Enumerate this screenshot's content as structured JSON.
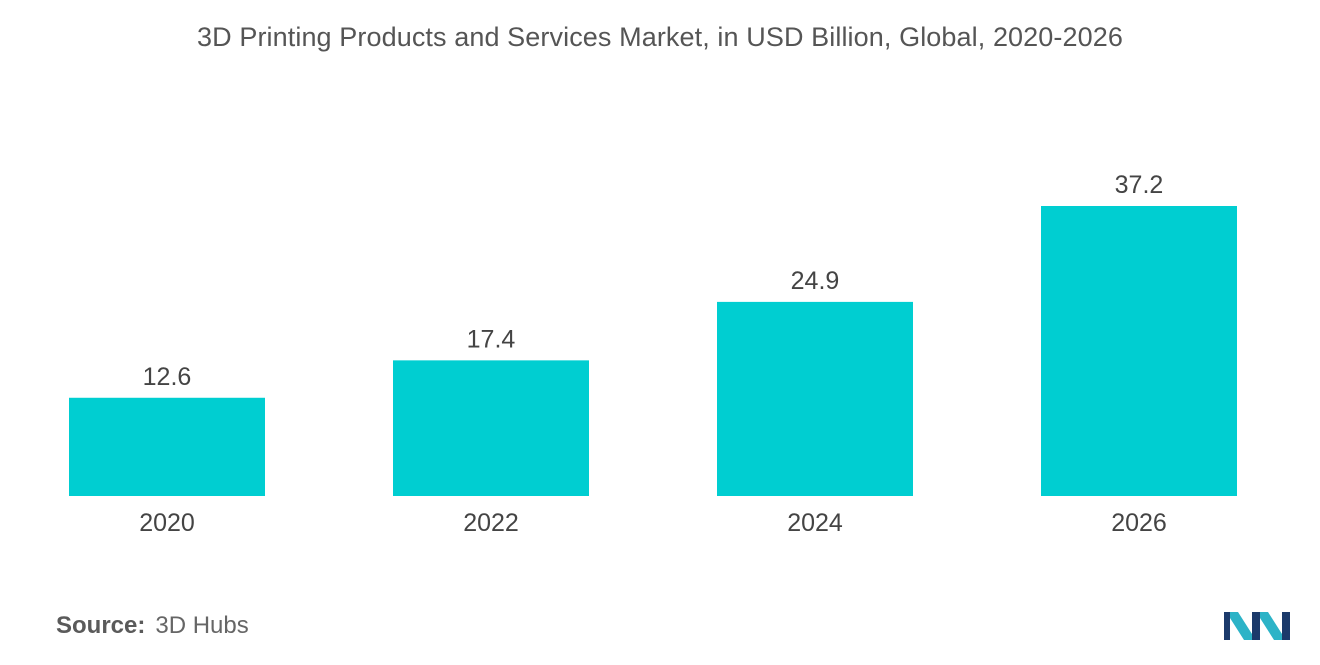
{
  "chart_data": {
    "type": "bar",
    "title": "3D Printing Products and Services Market, in USD Billion, Global, 2020-2026",
    "categories": [
      "2020",
      "2022",
      "2024",
      "2026"
    ],
    "values": [
      12.6,
      17.4,
      24.9,
      37.2
    ],
    "value_labels": [
      "12.6",
      "17.4",
      "24.9",
      "37.2"
    ],
    "xlabel": "",
    "ylabel": "",
    "ylim": [
      0,
      37.2
    ],
    "grid": false,
    "legend": "none",
    "bar_color": "#00CED1"
  },
  "source": {
    "label": "Source:",
    "value": "3D Hubs"
  },
  "logo": {
    "icon": "mordor-intelligence-logo-icon",
    "colors": [
      "#1B3A6B",
      "#2CB3C7"
    ]
  }
}
